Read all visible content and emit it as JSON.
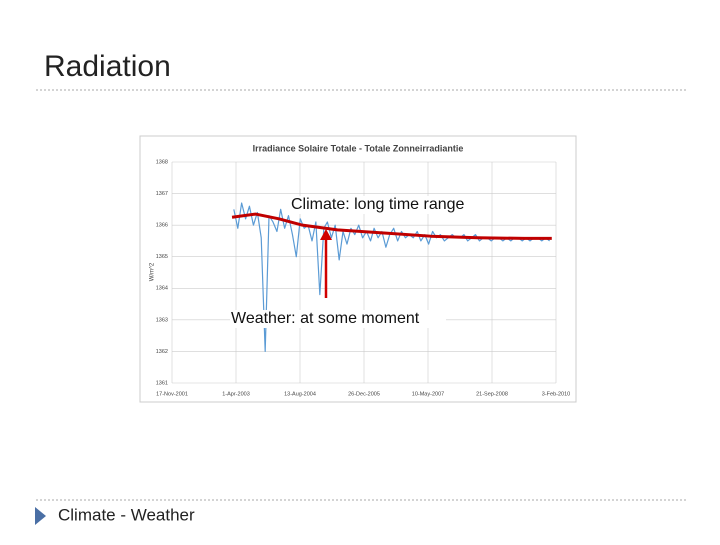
{
  "slide": {
    "title": "Radiation",
    "footer": "Climate - Weather"
  },
  "chart_data": {
    "type": "line",
    "title": "Irradiance Solaire Totale - Totale Zonneirradiantie",
    "y_label": "W/m^2",
    "ylim": [
      1361,
      1368
    ],
    "yticks": [
      1361,
      1362,
      1363,
      1364,
      1365,
      1366,
      1367,
      1368
    ],
    "xlim": [
      "2001-11-17",
      "2010-02-03"
    ],
    "xticks": [
      {
        "value": "2001-11-17",
        "label": "17-Nov-2001"
      },
      {
        "value": "2003-04-01",
        "label": "1-Apr-2003"
      },
      {
        "value": "2004-08-13",
        "label": "13-Aug-2004"
      },
      {
        "value": "2005-12-26",
        "label": "26-Dec-2005"
      },
      {
        "value": "2007-05-10",
        "label": "10-May-2007"
      },
      {
        "value": "2008-09-21",
        "label": "21-Sep-2008"
      },
      {
        "value": "2010-02-03",
        "label": "3-Feb-2010"
      }
    ],
    "grid": true,
    "annotations": [
      {
        "text": "Climate: long time range"
      },
      {
        "text": "Weather: at some moment"
      }
    ],
    "series": [
      {
        "color": "#5b9bd5",
        "x": [
          "2003-03-15",
          "2003-04-15",
          "2003-05-15",
          "2003-06-15",
          "2003-07-15",
          "2003-08-15",
          "2003-09-15",
          "2003-10-15",
          "2003-11-15",
          "2003-12-15",
          "2004-01-15",
          "2004-02-15",
          "2004-03-15",
          "2004-04-15",
          "2004-05-15",
          "2004-06-15",
          "2004-07-15",
          "2004-08-15",
          "2004-09-15",
          "2004-10-15",
          "2004-11-15",
          "2004-12-15",
          "2005-01-15",
          "2005-02-15",
          "2005-03-15",
          "2005-04-15",
          "2005-05-15",
          "2005-06-15",
          "2005-07-15",
          "2005-08-15",
          "2005-09-15",
          "2005-10-15",
          "2005-11-15",
          "2005-12-15",
          "2006-01-15",
          "2006-02-15",
          "2006-03-15",
          "2006-04-15",
          "2006-05-15",
          "2006-06-15",
          "2006-07-15",
          "2006-08-15",
          "2006-09-15",
          "2006-10-15",
          "2006-11-15",
          "2006-12-15",
          "2007-01-15",
          "2007-02-15",
          "2007-03-15",
          "2007-04-15",
          "2007-05-15",
          "2007-06-15",
          "2007-07-15",
          "2007-08-15",
          "2007-09-15",
          "2007-10-15",
          "2007-11-15",
          "2007-12-15",
          "2008-01-15",
          "2008-02-15",
          "2008-03-15",
          "2008-04-15",
          "2008-05-15",
          "2008-06-15",
          "2008-07-15",
          "2008-08-15",
          "2008-09-15",
          "2008-10-15",
          "2008-11-15",
          "2008-12-15",
          "2009-01-15",
          "2009-02-15",
          "2009-03-15",
          "2009-04-15",
          "2009-05-15",
          "2009-06-15",
          "2009-07-15",
          "2009-08-15",
          "2009-09-15",
          "2009-10-15",
          "2009-11-15",
          "2009-12-15"
        ],
        "values": [
          1366.5,
          1365.9,
          1366.7,
          1366.2,
          1366.6,
          1366.0,
          1366.4,
          1365.6,
          1362.0,
          1366.3,
          1366.1,
          1365.8,
          1366.5,
          1365.9,
          1366.3,
          1365.7,
          1365.0,
          1366.2,
          1365.9,
          1366.0,
          1365.5,
          1366.1,
          1363.8,
          1365.9,
          1366.1,
          1365.6,
          1366.0,
          1364.9,
          1365.8,
          1365.4,
          1365.9,
          1365.7,
          1366.0,
          1365.6,
          1365.8,
          1365.5,
          1365.9,
          1365.6,
          1365.8,
          1365.3,
          1365.7,
          1365.9,
          1365.5,
          1365.8,
          1365.6,
          1365.7,
          1365.6,
          1365.8,
          1365.5,
          1365.7,
          1365.4,
          1365.8,
          1365.6,
          1365.7,
          1365.5,
          1365.6,
          1365.7,
          1365.6,
          1365.6,
          1365.7,
          1365.5,
          1365.6,
          1365.7,
          1365.5,
          1365.6,
          1365.6,
          1365.5,
          1365.6,
          1365.6,
          1365.5,
          1365.6,
          1365.5,
          1365.6,
          1365.6,
          1365.5,
          1365.6,
          1365.5,
          1365.6,
          1365.6,
          1365.5,
          1365.6,
          1365.5
        ]
      },
      {
        "color": "#c00000",
        "x": [
          "2003-03-01",
          "2003-09-01",
          "2004-03-01",
          "2004-09-01",
          "2005-06-01",
          "2006-06-01",
          "2007-06-01",
          "2008-06-01",
          "2009-06-01",
          "2010-01-01"
        ],
        "values": [
          1366.25,
          1366.35,
          1366.2,
          1366.0,
          1365.85,
          1365.75,
          1365.65,
          1365.6,
          1365.58,
          1365.58
        ]
      }
    ]
  }
}
